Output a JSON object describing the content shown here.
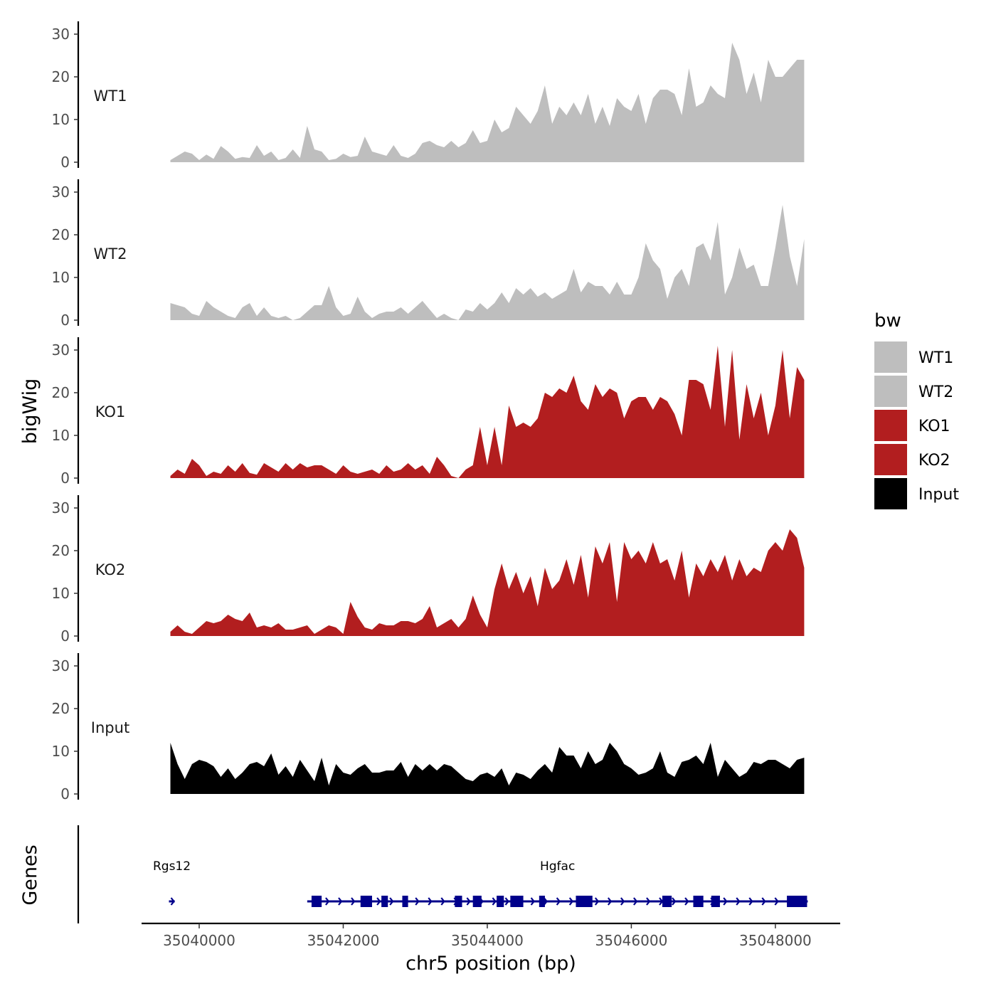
{
  "chart_data": {
    "type": "area",
    "ylabel": "bigWig",
    "xlabel": "chr5 position (bp)",
    "xlim": [
      35039200,
      35048900
    ],
    "ylim": [
      0,
      33
    ],
    "y_ticks": [
      0,
      10,
      20,
      30
    ],
    "x_ticks": [
      35040000,
      35042000,
      35044000,
      35046000,
      35048000
    ],
    "x_tick_labels": [
      "35040000",
      "35042000",
      "35044000",
      "35046000",
      "35048000"
    ],
    "legend": {
      "title": "bw",
      "entries": [
        {
          "label": "WT1",
          "color": "#bebebe"
        },
        {
          "label": "WT2",
          "color": "#bebebe"
        },
        {
          "label": "KO1",
          "color": "#b21e1f"
        },
        {
          "label": "KO2",
          "color": "#b21e1f"
        },
        {
          "label": "Input",
          "color": "#000000"
        }
      ]
    },
    "series": [
      {
        "name": "WT1",
        "color": "#bebebe",
        "x": [
          35039600,
          35039700,
          35039800,
          35039900,
          35040000,
          35040100,
          35040200,
          35040300,
          35040400,
          35040500,
          35040600,
          35040700,
          35040800,
          35040900,
          35041000,
          35041100,
          35041200,
          35041300,
          35041400,
          35041500,
          35041600,
          35041700,
          35041800,
          35041900,
          35042000,
          35042100,
          35042200,
          35042300,
          35042400,
          35042500,
          35042600,
          35042700,
          35042800,
          35042900,
          35043000,
          35043100,
          35043200,
          35043300,
          35043400,
          35043500,
          35043600,
          35043700,
          35043800,
          35043900,
          35044000,
          35044100,
          35044200,
          35044300,
          35044400,
          35044500,
          35044600,
          35044700,
          35044800,
          35044900,
          35045000,
          35045100,
          35045200,
          35045300,
          35045400,
          35045500,
          35045600,
          35045700,
          35045800,
          35045900,
          35046000,
          35046100,
          35046200,
          35046300,
          35046400,
          35046500,
          35046600,
          35046700,
          35046800,
          35046900,
          35047000,
          35047100,
          35047200,
          35047300,
          35047400,
          35047500,
          35047600,
          35047700,
          35047800,
          35047900,
          35048000,
          35048100,
          35048200,
          35048300,
          35048400
        ],
        "values": [
          0.5,
          1.5,
          2.5,
          2,
          0.5,
          1.8,
          0.8,
          3.8,
          2.5,
          0.8,
          1.2,
          1,
          4,
          1.5,
          2.5,
          0.5,
          1,
          3,
          1,
          8.5,
          3,
          2.5,
          0.5,
          0.8,
          2,
          1.2,
          1.5,
          6,
          2.5,
          2,
          1.5,
          4,
          1.5,
          1,
          2,
          4.5,
          5,
          4,
          3.5,
          5,
          3.5,
          4.5,
          7.5,
          4.5,
          5,
          10,
          7,
          8,
          13,
          11,
          9,
          12,
          18,
          9,
          13,
          11,
          14,
          11,
          16,
          9,
          13,
          8.5,
          15,
          13,
          12,
          16,
          9,
          15,
          17,
          17,
          16,
          11,
          22,
          13,
          14,
          18,
          16,
          15,
          28,
          24,
          16,
          21,
          14,
          24,
          20,
          20,
          22,
          24,
          24
        ]
      },
      {
        "name": "WT2",
        "color": "#bebebe",
        "x": [
          35039600,
          35039700,
          35039800,
          35039900,
          35040000,
          35040100,
          35040200,
          35040300,
          35040400,
          35040500,
          35040600,
          35040700,
          35040800,
          35040900,
          35041000,
          35041100,
          35041200,
          35041300,
          35041400,
          35041500,
          35041600,
          35041700,
          35041800,
          35041900,
          35042000,
          35042100,
          35042200,
          35042300,
          35042400,
          35042500,
          35042600,
          35042700,
          35042800,
          35042900,
          35043000,
          35043100,
          35043200,
          35043300,
          35043400,
          35043500,
          35043600,
          35043700,
          35043800,
          35043900,
          35044000,
          35044100,
          35044200,
          35044300,
          35044400,
          35044500,
          35044600,
          35044700,
          35044800,
          35044900,
          35045000,
          35045100,
          35045200,
          35045300,
          35045400,
          35045500,
          35045600,
          35045700,
          35045800,
          35045900,
          35046000,
          35046100,
          35046200,
          35046300,
          35046400,
          35046500,
          35046600,
          35046700,
          35046800,
          35046900,
          35047000,
          35047100,
          35047200,
          35047300,
          35047400,
          35047500,
          35047600,
          35047700,
          35047800,
          35047900,
          35048000,
          35048100,
          35048200,
          35048300,
          35048400
        ],
        "values": [
          4,
          3.5,
          3,
          1.5,
          1,
          4.5,
          3,
          2,
          1,
          0.5,
          3,
          4,
          1,
          3,
          1,
          0.5,
          1,
          0,
          0.5,
          2,
          3.5,
          3.5,
          8,
          3,
          1,
          1.5,
          5.5,
          2,
          0.5,
          1.5,
          2,
          2,
          3,
          1.5,
          3,
          4.5,
          2.5,
          0.5,
          1.5,
          0.5,
          0,
          2.5,
          2,
          4,
          2.5,
          4,
          6.5,
          4,
          7.5,
          6,
          7.5,
          5.5,
          6.5,
          5,
          6,
          7,
          12,
          6.5,
          9,
          8,
          8,
          6,
          9,
          6,
          6,
          10,
          18,
          14,
          12,
          5,
          10,
          12,
          8,
          17,
          18,
          14,
          23,
          6,
          10,
          17,
          12,
          13,
          8,
          8,
          17,
          27,
          15,
          8,
          19
        ]
      },
      {
        "name": "KO1",
        "color": "#b21e1f",
        "x": [
          35039600,
          35039700,
          35039800,
          35039900,
          35040000,
          35040100,
          35040200,
          35040300,
          35040400,
          35040500,
          35040600,
          35040700,
          35040800,
          35040900,
          35041000,
          35041100,
          35041200,
          35041300,
          35041400,
          35041500,
          35041600,
          35041700,
          35041800,
          35041900,
          35042000,
          35042100,
          35042200,
          35042300,
          35042400,
          35042500,
          35042600,
          35042700,
          35042800,
          35042900,
          35043000,
          35043100,
          35043200,
          35043300,
          35043400,
          35043500,
          35043600,
          35043700,
          35043800,
          35043900,
          35044000,
          35044100,
          35044200,
          35044300,
          35044400,
          35044500,
          35044600,
          35044700,
          35044800,
          35044900,
          35045000,
          35045100,
          35045200,
          35045300,
          35045400,
          35045500,
          35045600,
          35045700,
          35045800,
          35045900,
          35046000,
          35046100,
          35046200,
          35046300,
          35046400,
          35046500,
          35046600,
          35046700,
          35046800,
          35046900,
          35047000,
          35047100,
          35047200,
          35047300,
          35047400,
          35047500,
          35047600,
          35047700,
          35047800,
          35047900,
          35048000,
          35048100,
          35048200,
          35048300,
          35048400
        ],
        "values": [
          0.5,
          2,
          1,
          4.5,
          3,
          0.5,
          1.5,
          1,
          3,
          1.5,
          3.5,
          1.2,
          0.8,
          3.5,
          2.5,
          1.5,
          3.5,
          2,
          3.5,
          2.5,
          3,
          3,
          2,
          1,
          3,
          1.5,
          1,
          1.5,
          2,
          1,
          3,
          1.5,
          2,
          3.5,
          2,
          3,
          1,
          5,
          3,
          0.5,
          0,
          2,
          3,
          12,
          3,
          12,
          3,
          17,
          12,
          13,
          12,
          14,
          20,
          19,
          21,
          20,
          24,
          18,
          16,
          22,
          19,
          21,
          20,
          14,
          18,
          19,
          19,
          16,
          19,
          18,
          15,
          10,
          23,
          23,
          22,
          16,
          31,
          12,
          30,
          9,
          22,
          14,
          20,
          10,
          17,
          30,
          14,
          26,
          23
        ]
      },
      {
        "name": "KO2",
        "color": "#b21e1f",
        "x": [
          35039600,
          35039700,
          35039800,
          35039900,
          35040000,
          35040100,
          35040200,
          35040300,
          35040400,
          35040500,
          35040600,
          35040700,
          35040800,
          35040900,
          35041000,
          35041100,
          35041200,
          35041300,
          35041400,
          35041500,
          35041600,
          35041700,
          35041800,
          35041900,
          35042000,
          35042100,
          35042200,
          35042300,
          35042400,
          35042500,
          35042600,
          35042700,
          35042800,
          35042900,
          35043000,
          35043100,
          35043200,
          35043300,
          35043400,
          35043500,
          35043600,
          35043700,
          35043800,
          35043900,
          35044000,
          35044100,
          35044200,
          35044300,
          35044400,
          35044500,
          35044600,
          35044700,
          35044800,
          35044900,
          35045000,
          35045100,
          35045200,
          35045300,
          35045400,
          35045500,
          35045600,
          35045700,
          35045800,
          35045900,
          35046000,
          35046100,
          35046200,
          35046300,
          35046400,
          35046500,
          35046600,
          35046700,
          35046800,
          35046900,
          35047000,
          35047100,
          35047200,
          35047300,
          35047400,
          35047500,
          35047600,
          35047700,
          35047800,
          35047900,
          35048000,
          35048100,
          35048200,
          35048300,
          35048400
        ],
        "values": [
          1,
          2.5,
          1,
          0.5,
          2,
          3.5,
          3,
          3.5,
          5,
          4,
          3.5,
          5.5,
          2,
          2.5,
          2,
          3,
          1.5,
          1.5,
          2,
          2.5,
          0.5,
          1.5,
          2.5,
          2,
          0.5,
          8,
          4.5,
          2,
          1.5,
          3,
          2.5,
          2.5,
          3.5,
          3.5,
          3,
          4,
          7,
          2,
          3,
          4,
          2,
          4,
          9.5,
          5,
          2,
          11,
          17,
          11,
          15,
          10,
          14,
          7,
          16,
          11,
          13,
          18,
          12,
          19,
          9,
          21,
          17,
          22,
          8,
          22,
          18,
          20,
          17,
          22,
          17,
          18,
          13,
          20,
          9,
          17,
          14,
          18,
          15,
          19,
          13,
          18,
          14,
          16,
          15,
          20,
          22,
          20,
          25,
          23,
          16
        ]
      },
      {
        "name": "Input",
        "color": "#000000",
        "x": [
          35039600,
          35039700,
          35039800,
          35039900,
          35040000,
          35040100,
          35040200,
          35040300,
          35040400,
          35040500,
          35040600,
          35040700,
          35040800,
          35040900,
          35041000,
          35041100,
          35041200,
          35041300,
          35041400,
          35041500,
          35041600,
          35041700,
          35041800,
          35041900,
          35042000,
          35042100,
          35042200,
          35042300,
          35042400,
          35042500,
          35042600,
          35042700,
          35042800,
          35042900,
          35043000,
          35043100,
          35043200,
          35043300,
          35043400,
          35043500,
          35043600,
          35043700,
          35043800,
          35043900,
          35044000,
          35044100,
          35044200,
          35044300,
          35044400,
          35044500,
          35044600,
          35044700,
          35044800,
          35044900,
          35045000,
          35045100,
          35045200,
          35045300,
          35045400,
          35045500,
          35045600,
          35045700,
          35045800,
          35045900,
          35046000,
          35046100,
          35046200,
          35046300,
          35046400,
          35046500,
          35046600,
          35046700,
          35046800,
          35046900,
          35047000,
          35047100,
          35047200,
          35047300,
          35047400,
          35047500,
          35047600,
          35047700,
          35047800,
          35047900,
          35048000,
          35048100,
          35048200,
          35048300,
          35048400
        ],
        "values": [
          12,
          7,
          3.5,
          7,
          8,
          7.5,
          6.5,
          4,
          6,
          3.5,
          5,
          7,
          7.5,
          6.5,
          9.5,
          4.5,
          6.5,
          4,
          8,
          5.5,
          3,
          8.5,
          2,
          7,
          5,
          4.5,
          6,
          7,
          5,
          5,
          5.5,
          5.5,
          7.5,
          4,
          7,
          5.5,
          7,
          5.5,
          7,
          6.5,
          5,
          3.5,
          3,
          4.5,
          5,
          4,
          6,
          2,
          5,
          4.5,
          3.5,
          5.5,
          7,
          5,
          11,
          9,
          9,
          6,
          10,
          7,
          8,
          12,
          10,
          7,
          6,
          4.5,
          5,
          6,
          10,
          5,
          4,
          7.5,
          8,
          9,
          7,
          12,
          4,
          8,
          6,
          4,
          5,
          7.5,
          7,
          8,
          8,
          7,
          6,
          8,
          8.5
        ]
      }
    ],
    "genes_panel": {
      "ylabel": "Genes",
      "genes": [
        {
          "name": "Rgs12",
          "start": 35039580,
          "end": 35039660,
          "strand": "+",
          "exons": []
        },
        {
          "name": "Hgfac",
          "start": 35041500,
          "end": 35048450,
          "strand": "+",
          "exons": [
            [
              35041560,
              35041700
            ],
            [
              35042240,
              35042400
            ],
            [
              35042530,
              35042620
            ],
            [
              35042820,
              35042900
            ],
            [
              35043550,
              35043650
            ],
            [
              35043800,
              35043920
            ],
            [
              35044130,
              35044230
            ],
            [
              35044320,
              35044500
            ],
            [
              35044720,
              35044800
            ],
            [
              35045230,
              35045460
            ],
            [
              35046430,
              35046560
            ],
            [
              35046860,
              35047000
            ],
            [
              35047110,
              35047230
            ],
            [
              35048160,
              35048440
            ]
          ]
        }
      ]
    }
  }
}
